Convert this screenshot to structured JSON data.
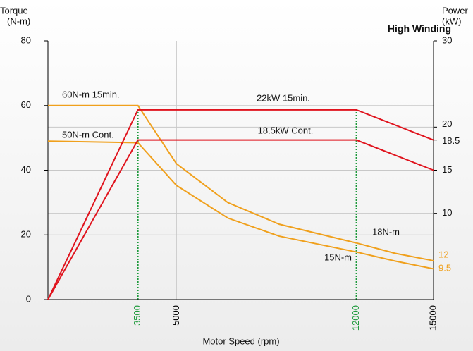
{
  "chart_data": {
    "type": "line",
    "title": "High Winding",
    "ylabel_lines": [
      "Torque",
      "(N-m)"
    ],
    "y2label_lines": [
      "Power",
      "(kW)"
    ],
    "xlabel": "Motor Speed (rpm)",
    "xlim": [
      0,
      15000
    ],
    "xticks": [
      3500,
      5000,
      12000,
      15000
    ],
    "xtick_colors": [
      "#1e9a3c",
      "#000000",
      "#1e9a3c",
      "#000000"
    ],
    "ylim": [
      0,
      80
    ],
    "yticks": [
      0,
      20,
      40,
      60,
      80
    ],
    "y2lim": [
      0,
      30
    ],
    "y2ticks": [
      10,
      15,
      18.5,
      20,
      30
    ],
    "grid": true,
    "series": [
      {
        "name": "60N-m 15min.",
        "color": "#f0a01c",
        "x": [
          0,
          3500,
          5000,
          7000,
          9000,
          12000,
          13500,
          15000
        ],
        "values": [
          60,
          60,
          42,
          30,
          23.3,
          17.5,
          14.3,
          12
        ]
      },
      {
        "name": "50N-m Cont.",
        "color": "#f0a01c",
        "x": [
          0,
          3500,
          5000,
          7000,
          9000,
          12000,
          13500,
          15000
        ],
        "values": [
          49,
          48.5,
          35.3,
          25.2,
          19.6,
          14.7,
          11.9,
          9.5
        ]
      },
      {
        "name": "22kW  15min.",
        "color": "#e0141e",
        "axis": "y2",
        "x": [
          0,
          3500,
          12000,
          15000
        ],
        "values": [
          0,
          22,
          22,
          18.5
        ]
      },
      {
        "name": "18.5kW Cont.",
        "color": "#e0141e",
        "axis": "y2",
        "x": [
          0,
          3500,
          12000,
          15000
        ],
        "values": [
          0,
          18.5,
          18.5,
          15
        ]
      }
    ],
    "annotations": [
      "18N-m",
      "15N-m"
    ]
  }
}
